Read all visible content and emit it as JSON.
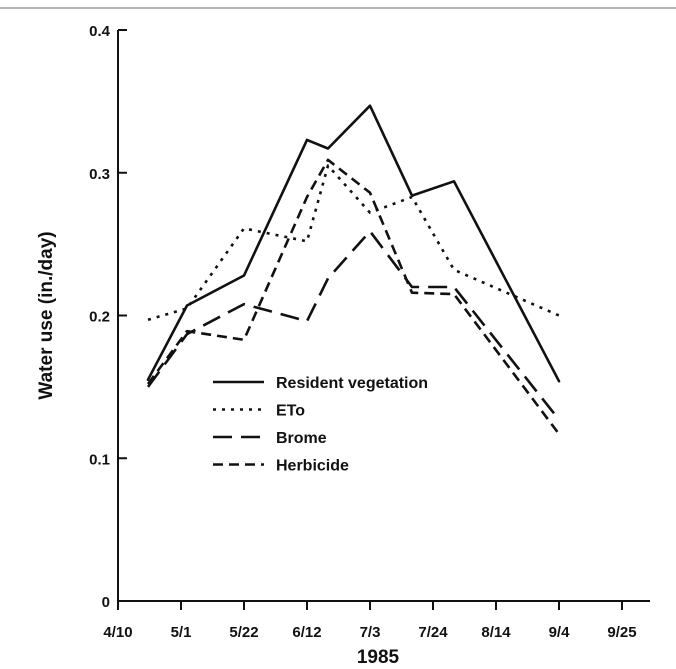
{
  "chart_data": {
    "type": "line",
    "title": "",
    "xlabel": "1985",
    "ylabel": "Water use (in./day)",
    "x_tick_labels": [
      "4/10",
      "5/1",
      "5/22",
      "6/12",
      "7/3",
      "7/24",
      "8/14",
      "9/4",
      "9/25"
    ],
    "y_ticks": [
      0,
      0.1,
      0.2,
      0.3,
      0.4
    ],
    "y_tick_labels": [
      "0",
      "0.1",
      "0.2",
      "0.3",
      "0.4"
    ],
    "ylim": [
      0,
      0.4
    ],
    "grid": false,
    "legend_position": "lower-center",
    "series": [
      {
        "name": "Resident vegetation",
        "dash": "solid",
        "x": [
          "4/20",
          "5/3",
          "5/22",
          "6/12",
          "6/19",
          "7/3",
          "7/17",
          "7/31",
          "9/4"
        ],
        "y": [
          0.155,
          0.207,
          0.228,
          0.323,
          0.317,
          0.347,
          0.284,
          0.294,
          0.154
        ]
      },
      {
        "name": "ETo",
        "dash": "dotted",
        "x": [
          "4/20",
          "5/3",
          "5/22",
          "6/12",
          "6/19",
          "7/3",
          "7/17",
          "7/31",
          "9/4"
        ],
        "y": [
          0.197,
          0.205,
          0.261,
          0.252,
          0.305,
          0.272,
          0.283,
          0.232,
          0.2
        ]
      },
      {
        "name": "Brome",
        "dash": "long-dash",
        "x": [
          "4/20",
          "5/3",
          "5/22",
          "6/12",
          "6/19",
          "7/3",
          "7/17",
          "7/31",
          "9/4"
        ],
        "y": [
          0.15,
          0.187,
          0.208,
          0.196,
          0.226,
          0.259,
          0.22,
          0.22,
          0.127
        ]
      },
      {
        "name": "Herbicide",
        "dash": "short-dash",
        "x": [
          "4/20",
          "5/3",
          "5/22",
          "6/12",
          "6/19",
          "7/3",
          "7/17",
          "7/31",
          "9/4"
        ],
        "y": [
          0.152,
          0.189,
          0.183,
          0.283,
          0.309,
          0.286,
          0.216,
          0.215,
          0.117
        ]
      }
    ]
  }
}
